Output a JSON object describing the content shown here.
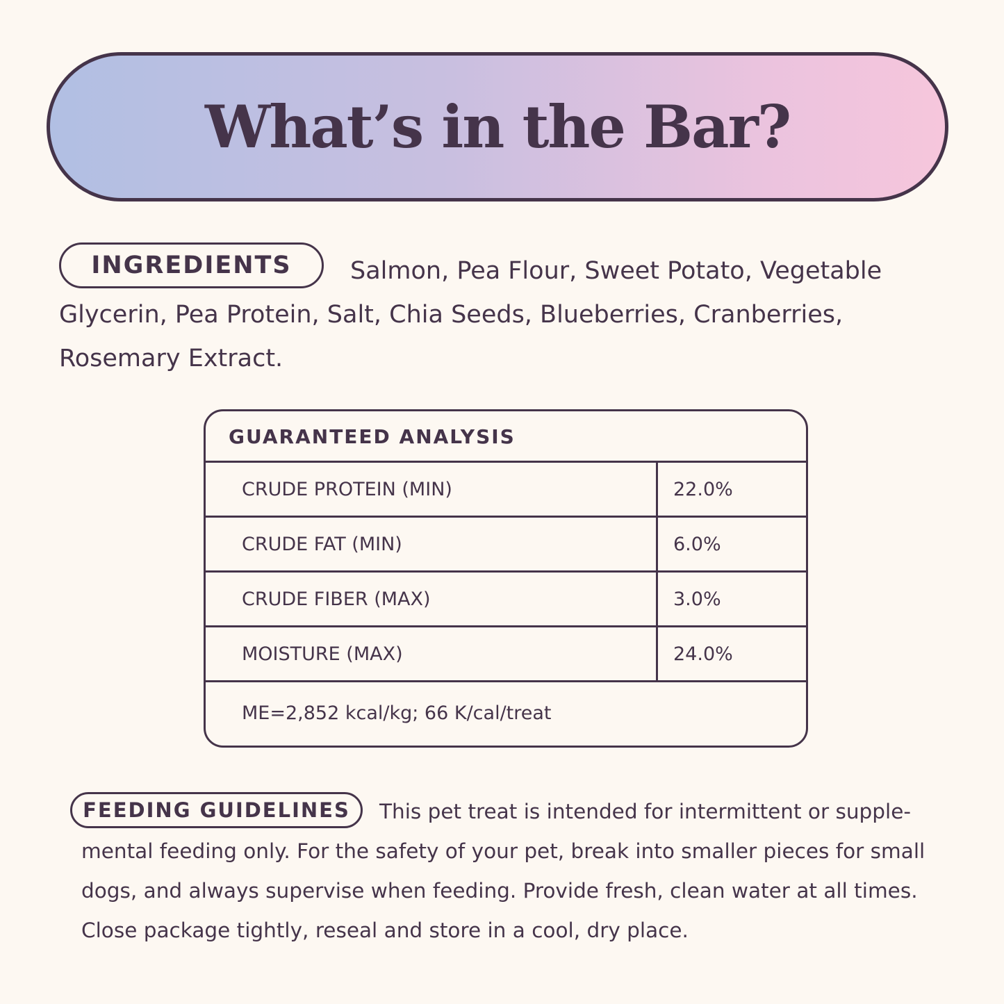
{
  "title": "What’s in the Bar?",
  "ingredients": {
    "label": "INGREDIENTS",
    "text": "Salmon, Pea Flour, Sweet Potato, Vegetable Glycerin, Pea Protein, Salt, Chia Seeds, Blueberries, Cranberries, Rosemary Extract."
  },
  "analysis": {
    "heading": "GUARANTEED ANALYSIS",
    "rows": [
      {
        "label": "CRUDE PROTEIN (MIN)",
        "value": "22.0%"
      },
      {
        "label": "CRUDE FAT (MIN)",
        "value": "6.0%"
      },
      {
        "label": "CRUDE FIBER (MAX)",
        "value": "3.0%"
      },
      {
        "label": "MOISTURE (MAX)",
        "value": "24.0%"
      }
    ],
    "footer": "ME=2,852 kcal/kg; 66 K/cal/treat"
  },
  "feeding": {
    "label": "FEEDING GUIDELINES",
    "text": "This pet treat is intended for intermittent or supple-mental feeding only. For the safety of your pet, break into smaller pieces for small dogs, and always supervise when feeding. Provide fresh, clean water at all times. Close package tightly, reseal and store in a cool, dry place."
  },
  "colors": {
    "background": "#fdf8f2",
    "text": "#45344a",
    "gradient_start": "#b1bfe3",
    "gradient_end": "#f6c6dc"
  }
}
